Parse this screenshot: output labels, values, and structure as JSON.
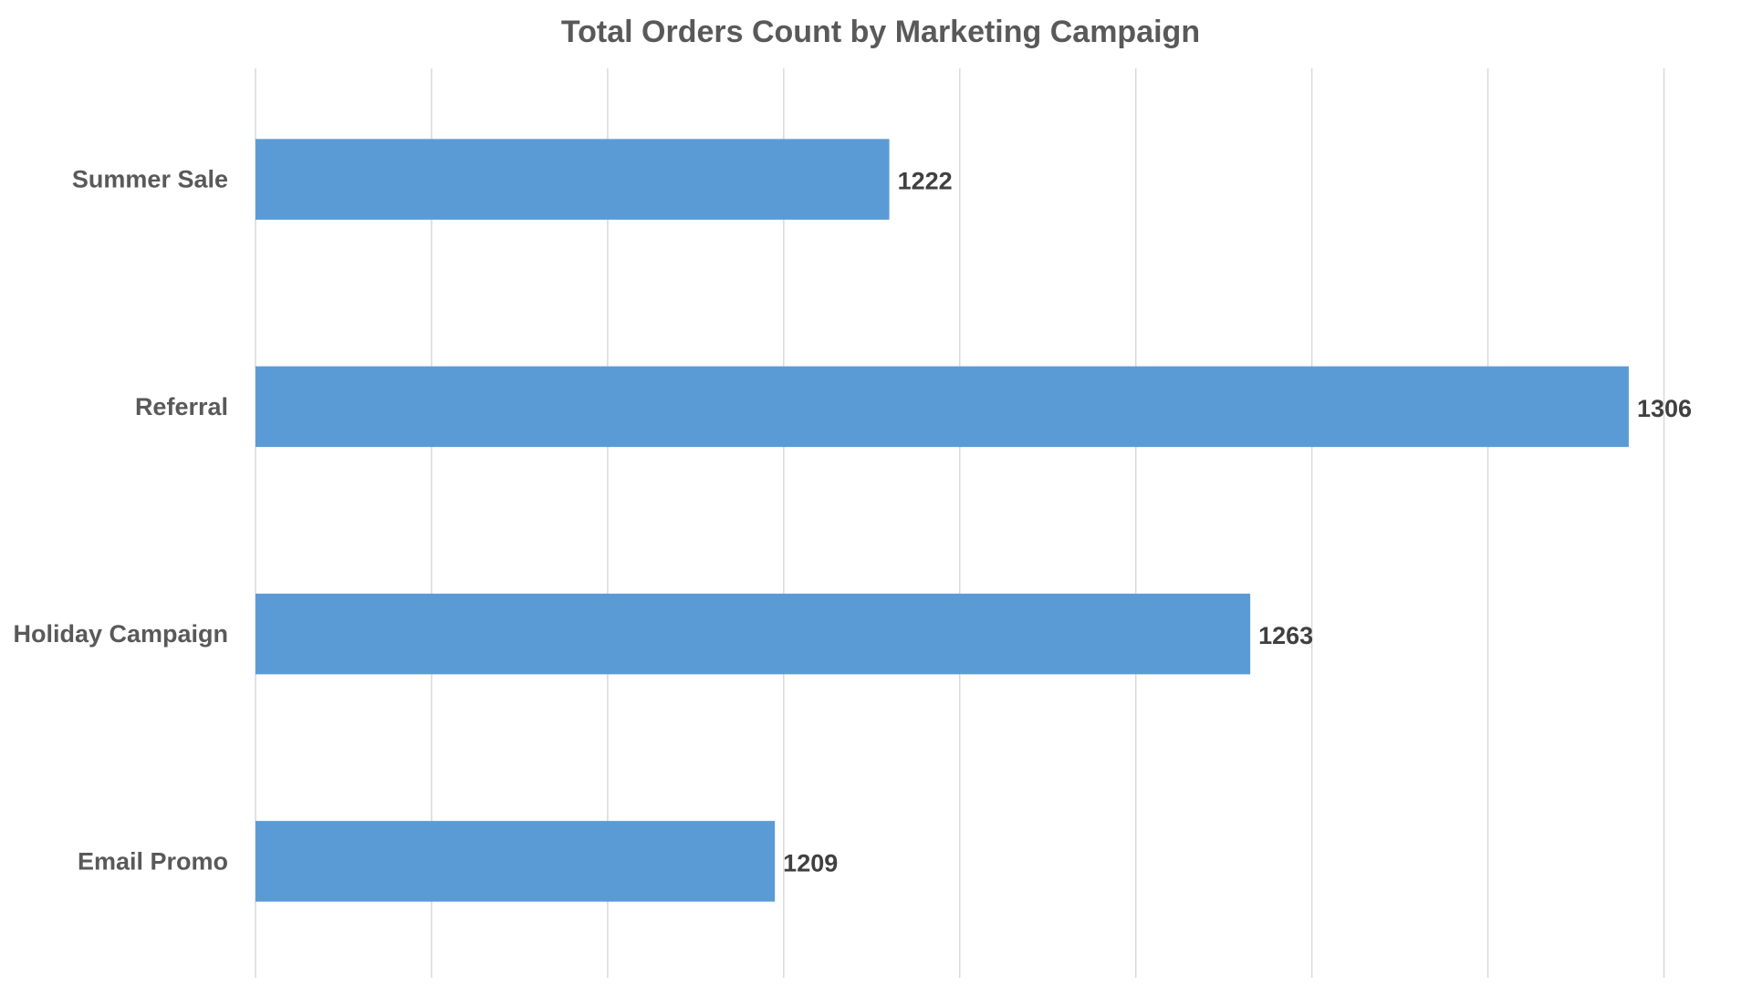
{
  "chart_data": {
    "type": "bar",
    "orientation": "horizontal",
    "title": "Total Orders Count by Marketing Campaign",
    "xlabel": "",
    "ylabel": "",
    "categories": [
      "Summer Sale",
      "Referral",
      "Holiday Campaign",
      "Email Promo"
    ],
    "values": [
      1222,
      1306,
      1263,
      1209
    ],
    "xlim": [
      1150,
      1320
    ],
    "grid_step": 20,
    "grid": true,
    "x_tick_labels_visible": false,
    "data_labels": true,
    "legend": "none",
    "bar_color": "#5b9bd5"
  }
}
